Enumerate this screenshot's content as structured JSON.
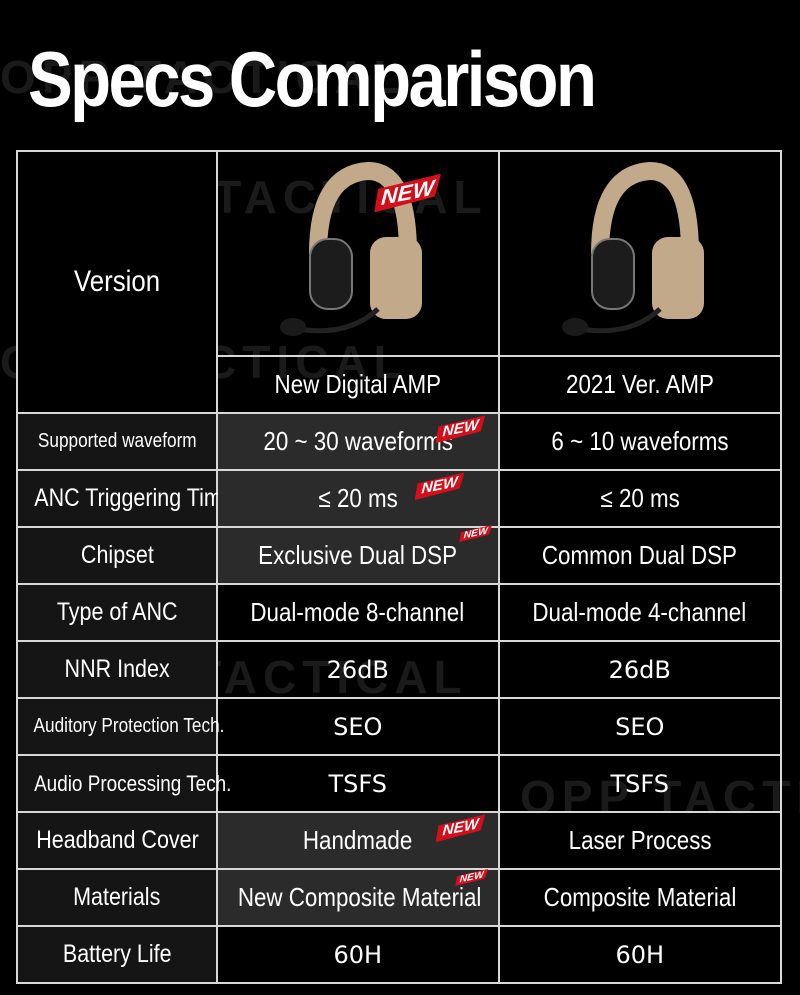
{
  "title": "Specs Comparison",
  "watermark": "OPP TACTICAL",
  "badge": "NEW",
  "header": {
    "version_label": "Version",
    "products": [
      "New Digital AMP",
      "2021 Ver. AMP"
    ]
  },
  "rows": [
    {
      "label": "Supported waveform",
      "new": "20 ~ 30 waveforms",
      "old": "6 ~ 10 waveforms"
    },
    {
      "label": "ANC Triggering Time",
      "new": "≤ 20 ms",
      "old": "≤ 20 ms"
    },
    {
      "label": "Chipset",
      "new": "Exclusive Dual DSP",
      "old": "Common Dual DSP"
    },
    {
      "label": "Type of ANC",
      "new": "Dual-mode 8-channel",
      "old": "Dual-mode 4-channel"
    },
    {
      "label": "NNR Index",
      "new": "26dB",
      "old": "26dB"
    },
    {
      "label": "Auditory Protection Tech.",
      "new": "SEO",
      "old": "SEO"
    },
    {
      "label": "Audio Processing Tech.",
      "new": "TSFS",
      "old": "TSFS"
    },
    {
      "label": "Headband Cover",
      "new": "Handmade",
      "old": "Laser Process"
    },
    {
      "label": "Materials",
      "new": "New Composite Material",
      "old": "Composite Material"
    },
    {
      "label": "Battery Life",
      "new": "60H",
      "old": "60H"
    }
  ],
  "colors": {
    "badge": "#d40f1b",
    "headset": "#c2a98a"
  }
}
